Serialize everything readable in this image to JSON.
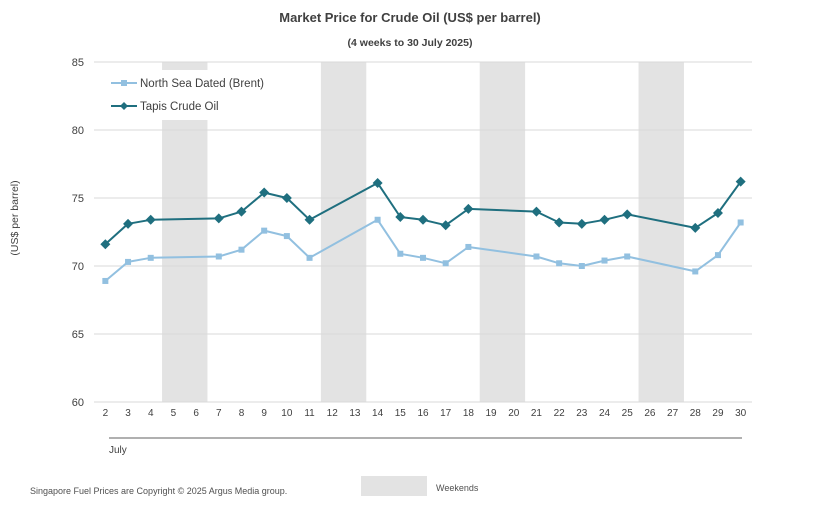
{
  "chart_data": {
    "type": "line",
    "title": "Market Price for Crude  Oil (US$ per barrel)",
    "subtitle": "(4 weeks to 30 July 2025)",
    "ylabel": "(US$ per barrel)",
    "xlabel": "July",
    "ylim": [
      60,
      85
    ],
    "yticks": [
      60,
      65,
      70,
      75,
      80,
      85
    ],
    "x": [
      "2",
      "3",
      "4",
      "5",
      "6",
      "7",
      "8",
      "9",
      "10",
      "11",
      "12",
      "13",
      "14",
      "15",
      "16",
      "17",
      "18",
      "19",
      "20",
      "21",
      "22",
      "23",
      "24",
      "25",
      "26",
      "27",
      "28",
      "29",
      "30"
    ],
    "weekends": [
      [
        "5",
        "6"
      ],
      [
        "12",
        "13"
      ],
      [
        "19",
        "20"
      ],
      [
        "26",
        "27"
      ]
    ],
    "series": [
      {
        "name": "North Sea Dated (Brent)",
        "color": "#92c0e0",
        "marker": "square",
        "points": [
          {
            "x": "2",
            "y": 68.9
          },
          {
            "x": "3",
            "y": 70.3
          },
          {
            "x": "4",
            "y": 70.6
          },
          {
            "x": "7",
            "y": 70.7
          },
          {
            "x": "8",
            "y": 71.2
          },
          {
            "x": "9",
            "y": 72.6
          },
          {
            "x": "10",
            "y": 72.2
          },
          {
            "x": "11",
            "y": 70.6
          },
          {
            "x": "14",
            "y": 73.4
          },
          {
            "x": "15",
            "y": 70.9
          },
          {
            "x": "16",
            "y": 70.6
          },
          {
            "x": "17",
            "y": 70.2
          },
          {
            "x": "18",
            "y": 71.4
          },
          {
            "x": "21",
            "y": 70.7
          },
          {
            "x": "22",
            "y": 70.2
          },
          {
            "x": "23",
            "y": 70.0
          },
          {
            "x": "24",
            "y": 70.4
          },
          {
            "x": "25",
            "y": 70.7
          },
          {
            "x": "28",
            "y": 69.6
          },
          {
            "x": "29",
            "y": 70.8
          },
          {
            "x": "30",
            "y": 73.2
          }
        ]
      },
      {
        "name": "Tapis Crude Oil",
        "color": "#1f6f7f",
        "marker": "diamond",
        "points": [
          {
            "x": "2",
            "y": 71.6
          },
          {
            "x": "3",
            "y": 73.1
          },
          {
            "x": "4",
            "y": 73.4
          },
          {
            "x": "7",
            "y": 73.5
          },
          {
            "x": "8",
            "y": 74.0
          },
          {
            "x": "9",
            "y": 75.4
          },
          {
            "x": "10",
            "y": 75.0
          },
          {
            "x": "11",
            "y": 73.4
          },
          {
            "x": "14",
            "y": 76.1
          },
          {
            "x": "15",
            "y": 73.6
          },
          {
            "x": "16",
            "y": 73.4
          },
          {
            "x": "17",
            "y": 73.0
          },
          {
            "x": "18",
            "y": 74.2
          },
          {
            "x": "21",
            "y": 74.0
          },
          {
            "x": "22",
            "y": 73.2
          },
          {
            "x": "23",
            "y": 73.1
          },
          {
            "x": "24",
            "y": 73.4
          },
          {
            "x": "25",
            "y": 73.8
          },
          {
            "x": "28",
            "y": 72.8
          },
          {
            "x": "29",
            "y": 73.9
          },
          {
            "x": "30",
            "y": 76.2
          }
        ]
      }
    ],
    "legend_position": "top-left",
    "grid": true
  },
  "footer": {
    "copyright": "Singapore Fuel Prices are Copyright © 2025 Argus Media group.",
    "weekends_label": "Weekends",
    "weekend_color": "#e3e3e3"
  }
}
